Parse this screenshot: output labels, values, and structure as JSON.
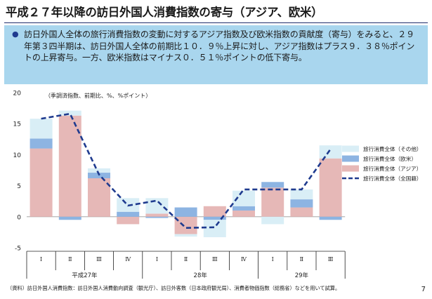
{
  "title": "平成２７年以降の訪日外国人消費指数の寄与（アジア、欧米）",
  "summary": "訪日外国人全体の旅行消費指数の変動に対するアジア指数及び欧米指数の貢献度（寄与）をみると、２９年第３四半期は、訪日外国人全体の前期比１０．９％上昇に対し、アジア指数はプラス９．３８％ポイントの上昇寄与。一方、欧米指数はマイナス０．５１％ポイントの低下寄与。",
  "bullet": "●",
  "source": "（資料）訪日外国人消費指数：訪日外国人消費動向調査（観光庁）、訪日外客数（日本政府観光局）、消費者物価指数（総務省）などを用いて試算。",
  "page_number": "7",
  "colors": {
    "other": "#d9eef6",
    "west": "#8db4e2",
    "asia": "#e6b8b7",
    "total": "#1f3b8f",
    "summary_bg": "#a9d6ee"
  },
  "chart_data": {
    "type": "bar",
    "stacked": true,
    "unit_note": "（季調済指数、前期比、%、%ポイント）",
    "ylim": [
      -5,
      20
    ],
    "yticks": [
      -5,
      0,
      5,
      10,
      15,
      20
    ],
    "categories": [
      "Ⅰ",
      "Ⅱ",
      "Ⅲ",
      "Ⅳ",
      "Ⅰ",
      "Ⅱ",
      "Ⅲ",
      "Ⅳ",
      "Ⅰ",
      "Ⅱ",
      "Ⅲ"
    ],
    "year_groups": [
      {
        "label": "平成27年",
        "start": 0,
        "end": 3
      },
      {
        "label": "28年",
        "start": 4,
        "end": 7
      },
      {
        "label": "29年",
        "start": 8,
        "end": 10
      }
    ],
    "series": [
      {
        "name": "旅行消費全体（アジア）",
        "key": "asia",
        "values": [
          11.0,
          16.3,
          6.2,
          -1.2,
          0.5,
          -2.8,
          1.7,
          1.0,
          4.7,
          1.5,
          9.4
        ]
      },
      {
        "name": "旅行消費全体（欧米）",
        "key": "west",
        "values": [
          1.6,
          -0.5,
          0.9,
          0.8,
          -0.2,
          1.5,
          -0.5,
          0.7,
          0.9,
          1.3,
          -0.5
        ]
      },
      {
        "name": "旅行消費全体（その他）",
        "key": "other",
        "values": [
          3.2,
          0.8,
          0.7,
          2.2,
          2.5,
          -0.4,
          -2.8,
          2.5,
          -1.2,
          1.6,
          2.1
        ]
      },
      {
        "name": "旅行消費全体（全国籍）",
        "key": "total",
        "type": "line",
        "values": [
          15.8,
          16.6,
          6.8,
          1.8,
          2.6,
          -1.8,
          -1.7,
          4.4,
          4.4,
          4.4,
          10.9
        ]
      }
    ],
    "legend_order": [
      "other",
      "west",
      "asia",
      "total"
    ],
    "legend_position": "right"
  }
}
